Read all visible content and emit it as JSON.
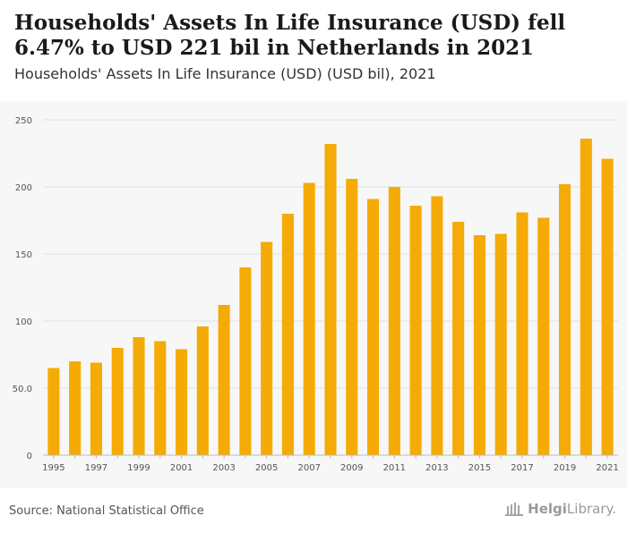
{
  "header": {
    "title": "Households' Assets In Life Insurance (USD) fell 6.47% to USD 221 bil in Netherlands in 2021",
    "subtitle": "Households' Assets In Life Insurance (USD) (USD bil), 2021"
  },
  "footer": {
    "source": "Source: National Statistical Office",
    "brand_bold": "Helgi",
    "brand_light": "Library."
  },
  "colors": {
    "bar": "#f5ab05",
    "grid": "#e2e2e2",
    "axis_text": "#555555"
  },
  "chart_data": {
    "type": "bar",
    "title": "Households' Assets In Life Insurance (USD) (USD bil), 2021",
    "xlabel": "",
    "ylabel": "",
    "categories": [
      "1995",
      "1996",
      "1997",
      "1998",
      "1999",
      "2000",
      "2001",
      "2002",
      "2003",
      "2004",
      "2005",
      "2006",
      "2007",
      "2008",
      "2009",
      "2010",
      "2011",
      "2012",
      "2013",
      "2014",
      "2015",
      "2016",
      "2017",
      "2018",
      "2019",
      "2020",
      "2021"
    ],
    "values": [
      65,
      70,
      69,
      80,
      88,
      85,
      79,
      96,
      112,
      140,
      159,
      180,
      203,
      232,
      206,
      191,
      200,
      186,
      193,
      174,
      164,
      165,
      181,
      177,
      202,
      236,
      221
    ],
    "x_tick_labels": [
      "1995",
      "",
      "1997",
      "",
      "1999",
      "",
      "2001",
      "",
      "2003",
      "",
      "2005",
      "",
      "2007",
      "",
      "2009",
      "",
      "2011",
      "",
      "2013",
      "",
      "2015",
      "",
      "2017",
      "",
      "2019",
      "",
      "2021"
    ],
    "ylim": [
      0,
      250
    ],
    "y_ticks": [
      0,
      50,
      100,
      150,
      200,
      250
    ],
    "y_tick_labels": [
      "0",
      "50.0",
      "100",
      "150",
      "200",
      "250"
    ],
    "grid": true,
    "legend": "none"
  }
}
